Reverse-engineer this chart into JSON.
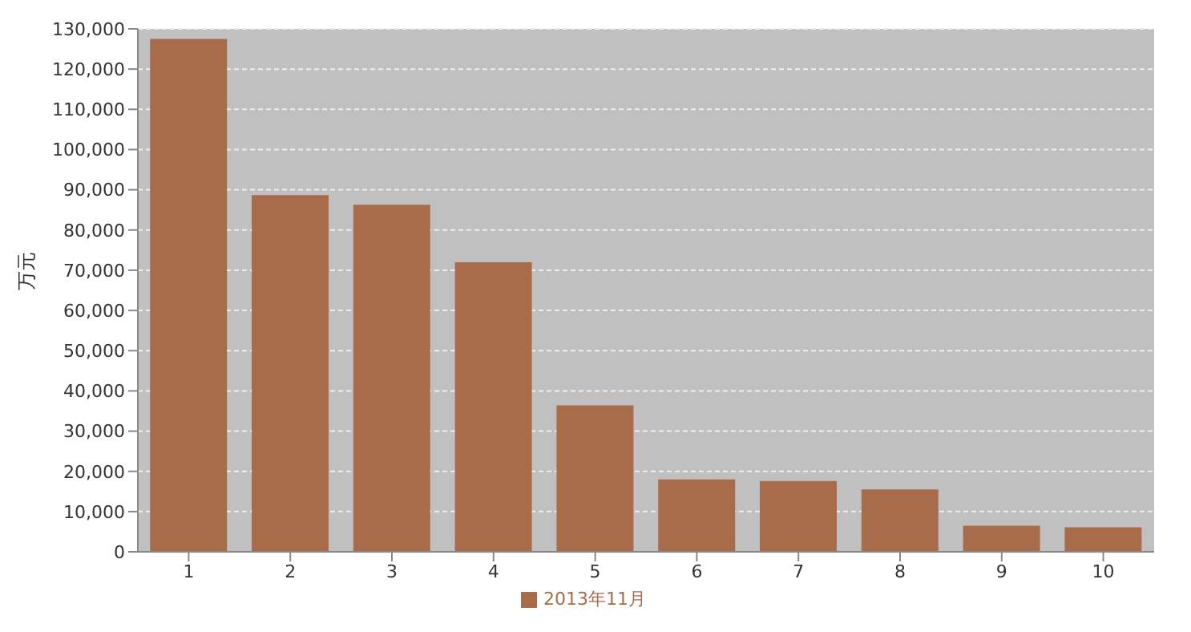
{
  "chart_data": {
    "type": "bar",
    "ylabel": "万元",
    "categories": [
      "1",
      "2",
      "3",
      "4",
      "5",
      "6",
      "7",
      "8",
      "9",
      "10"
    ],
    "series": [
      {
        "name": "2013年11月",
        "color": "#a86c4a",
        "values": [
          127500,
          88700,
          86300,
          72000,
          36400,
          18000,
          17600,
          15500,
          6500,
          6100
        ]
      }
    ],
    "ylim": [
      0,
      130000
    ],
    "yticks": [
      {
        "value": 0,
        "label": "0"
      },
      {
        "value": 10000,
        "label": "10,000"
      },
      {
        "value": 20000,
        "label": "20,000"
      },
      {
        "value": 30000,
        "label": "30,000"
      },
      {
        "value": 40000,
        "label": "40,000"
      },
      {
        "value": 50000,
        "label": "50,000"
      },
      {
        "value": 60000,
        "label": "60,000"
      },
      {
        "value": 70000,
        "label": "70,000"
      },
      {
        "value": 80000,
        "label": "80,000"
      },
      {
        "value": 90000,
        "label": "90,000"
      },
      {
        "value": 100000,
        "label": "100,000"
      },
      {
        "value": 110000,
        "label": "110,000"
      },
      {
        "value": 120000,
        "label": "120,000"
      },
      {
        "value": 130000,
        "label": "130,000"
      }
    ],
    "grid": "y",
    "legend": "bottom"
  }
}
